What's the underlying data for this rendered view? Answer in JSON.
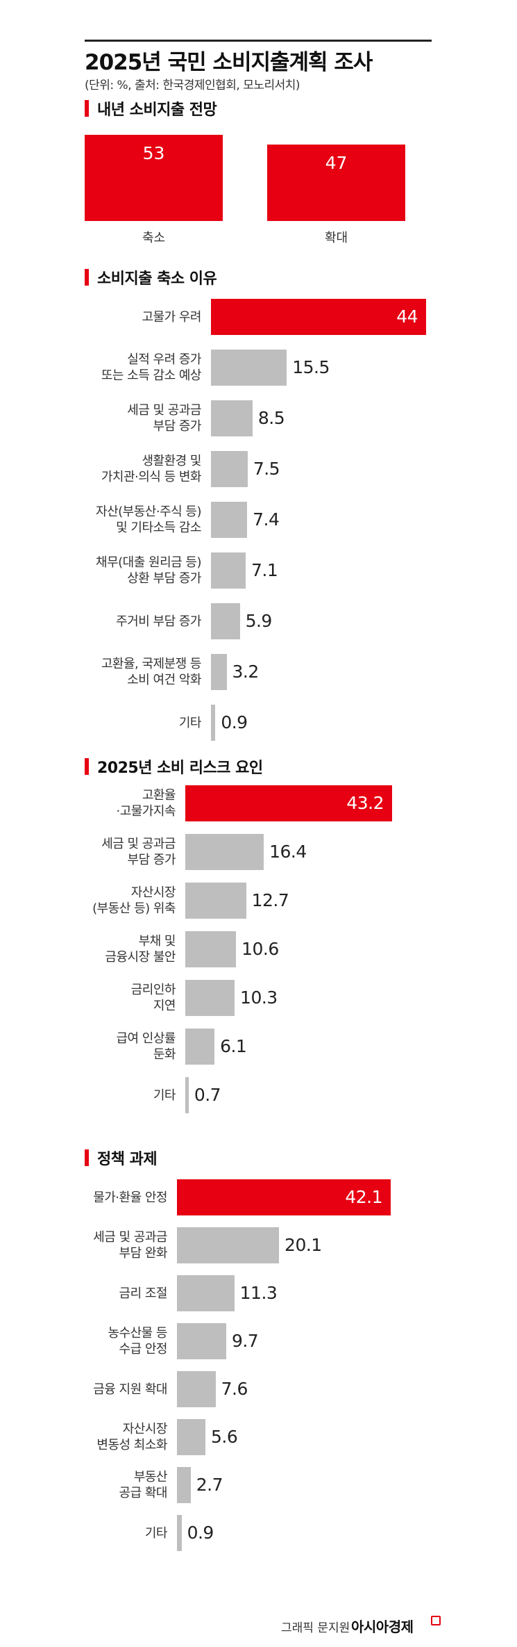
{
  "title": "2025년 국민 소비지출계획 조사",
  "subtitle": "(단위: %, 출처: 한국경제인협회, 모노리서치)",
  "credit": "그래픽 문지원",
  "credit_logo": "아시아경제",
  "colors": {
    "highlight": "#e60012",
    "bar": "#bebebe",
    "text": "#222222"
  },
  "chart_data": [
    {
      "type": "bar",
      "orientation": "vertical",
      "title": "내년 소비지출 전망",
      "categories": [
        "축소",
        "확대"
      ],
      "values": [
        53,
        47
      ],
      "highlight": [
        0,
        1
      ]
    },
    {
      "type": "bar",
      "orientation": "horizontal",
      "title": "소비지출 축소 이유",
      "categories": [
        "고물가 우려",
        "실적 우려 증가\n또는 소득 감소 예상",
        "세금 및 공과금\n부담 증가",
        "생활환경 및\n가치관·의식 등 변화",
        "자산(부동산·주식 등)\n및 기타소득 감소",
        "채무(대출 원리금 등)\n상환 부담 증가",
        "주거비 부담 증가",
        "고환율, 국제분쟁 등\n소비 여건 악화",
        "기타"
      ],
      "values": [
        44,
        15.5,
        8.5,
        7.5,
        7.4,
        7.1,
        5.9,
        3.2,
        0.9
      ],
      "value_labels": [
        "44",
        "15.5",
        "8.5",
        "7.5",
        "7.4",
        "7.1",
        "5.9",
        "3.2",
        "0.9"
      ],
      "highlight": [
        0
      ]
    },
    {
      "type": "bar",
      "orientation": "horizontal",
      "title": "2025년 소비 리스크 요인",
      "categories": [
        "고환율\n·고물가지속",
        "세금 및 공과금\n부담 증가",
        "자산시장\n(부동산 등) 위축",
        "부채 및\n금융시장 불안",
        "금리인하\n지연",
        "급여 인상률\n둔화",
        "기타"
      ],
      "values": [
        43.2,
        16.4,
        12.7,
        10.6,
        10.3,
        6.1,
        0.7
      ],
      "value_labels": [
        "43.2",
        "16.4",
        "12.7",
        "10.6",
        "10.3",
        "6.1",
        "0.7"
      ],
      "highlight": [
        0
      ]
    },
    {
      "type": "bar",
      "orientation": "horizontal",
      "title": "정책 과제",
      "categories": [
        "물가·환율 안정",
        "세금 및 공과금\n부담 완화",
        "금리 조절",
        "농수산물 등\n수급 안정",
        "금융 지원 확대",
        "자산시장\n변동성 최소화",
        "부동산\n공급 확대",
        "기타"
      ],
      "values": [
        42.1,
        20.1,
        11.3,
        9.7,
        7.6,
        5.6,
        2.7,
        0.9
      ],
      "value_labels": [
        "42.1",
        "20.1",
        "11.3",
        "9.7",
        "7.6",
        "5.6",
        "2.7",
        "0.9"
      ],
      "highlight": [
        0
      ]
    }
  ]
}
